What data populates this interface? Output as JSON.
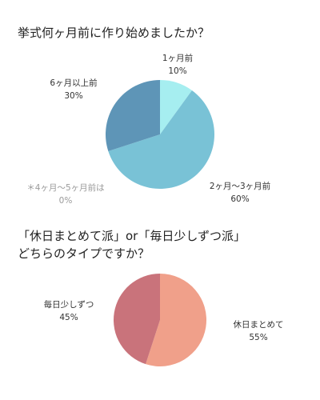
{
  "chart_data": [
    {
      "type": "pie",
      "title": "挙式何ヶ月前に作り始めましたか？",
      "slices": [
        {
          "label": "1ヶ月前",
          "value_label": "10%",
          "value": 10,
          "color": "#a6eef0"
        },
        {
          "label": "2ヶ月〜3ヶ月前",
          "value_label": "60%",
          "value": 60,
          "color": "#79c2d6"
        },
        {
          "label": "＊4ヶ月〜5ヶ月前は",
          "value_label": "0%",
          "value": 0,
          "color": "#9a9a9a"
        },
        {
          "label": "6ヶ月以上前",
          "value_label": "30%",
          "value": 30,
          "color": "#5e95b7"
        }
      ]
    },
    {
      "type": "pie",
      "title_lines": [
        "「休日まとめて派」or「毎日少しずつ派」",
        "どちらのタイプですか？"
      ],
      "slices": [
        {
          "label": "休日まとめて",
          "value_label": "55%",
          "value": 55,
          "color": "#f0a08a"
        },
        {
          "label": "毎日少しずつ",
          "value_label": "45%",
          "value": 45,
          "color": "#c9737b"
        }
      ]
    }
  ]
}
